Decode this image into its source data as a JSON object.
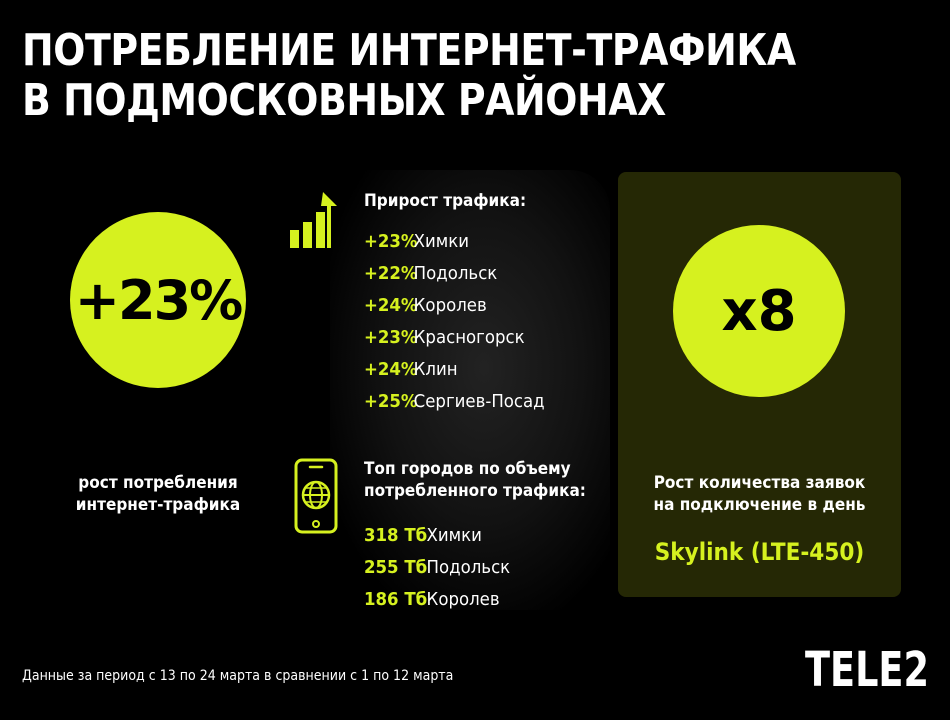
{
  "title": {
    "line1": "ПОТРЕБЛЕНИЕ ИНТЕРНЕТ-ТРАФИКА",
    "line2": "В ПОДМОСКОВНЫХ РАЙОНАХ"
  },
  "left": {
    "value": "+23%",
    "caption_line1": "рост потребления",
    "caption_line2": "интернет-трафика"
  },
  "growth": {
    "title": "Прирост трафика:",
    "items": [
      {
        "pct": "+23%",
        "city": "Химки"
      },
      {
        "pct": "+22%",
        "city": "Подольск"
      },
      {
        "pct": "+24%",
        "city": "Королев"
      },
      {
        "pct": "+23%",
        "city": "Красногорск"
      },
      {
        "pct": "+24%",
        "city": "Клин"
      },
      {
        "pct": "+25%",
        "city": "Сергиев-Посад"
      }
    ]
  },
  "top": {
    "title_line1": "Топ городов по объему",
    "title_line2": "потребленного трафика:",
    "items": [
      {
        "volume": "318 Тб",
        "city": "Химки"
      },
      {
        "volume": "255 Тб",
        "city": "Подольск"
      },
      {
        "volume": "186 Тб",
        "city": "Королев"
      }
    ]
  },
  "right": {
    "value": "х8",
    "caption_line1": "Рост количества заявок",
    "caption_line2": "на подключение в день",
    "brand": "Skylink (LTE-450)"
  },
  "footnote": "Данные за период с 13 по 24 марта в сравнении с 1 по 12 марта",
  "logo": "TELE2",
  "colors": {
    "accent": "#d6f11f",
    "background": "#000000",
    "panel": "#252805"
  },
  "icons": {
    "growth": "growth-chart-icon",
    "phone": "phone-globe-icon"
  }
}
